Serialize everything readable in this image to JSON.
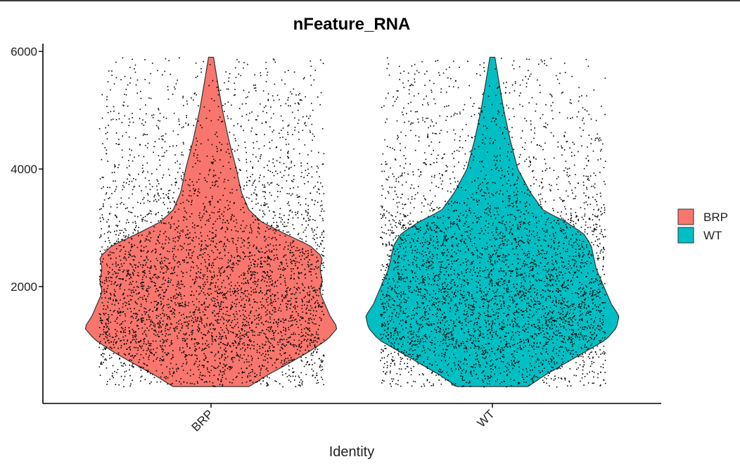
{
  "chart_data": {
    "type": "violin",
    "title": "nFeature_RNA",
    "xlabel": "Identity",
    "ylabel": "",
    "categories": [
      "BRP",
      "WT"
    ],
    "ylim": [
      0,
      6000
    ],
    "yticks": [
      2000,
      4000,
      6000
    ],
    "grid": false,
    "legend": {
      "position": "right",
      "entries": [
        "BRP",
        "WT"
      ]
    },
    "colors": {
      "BRP": "#F8766D",
      "WT": "#00BFC4"
    },
    "jitter_points": true,
    "series": [
      {
        "name": "BRP",
        "range": [
          300,
          5900
        ],
        "density": [
          [
            300,
            0.3
          ],
          [
            500,
            0.45
          ],
          [
            700,
            0.62
          ],
          [
            900,
            0.78
          ],
          [
            1100,
            0.92
          ],
          [
            1300,
            1.0
          ],
          [
            1500,
            0.94
          ],
          [
            1700,
            0.9
          ],
          [
            1900,
            0.86
          ],
          [
            2100,
            0.88
          ],
          [
            2300,
            0.86
          ],
          [
            2500,
            0.88
          ],
          [
            2700,
            0.78
          ],
          [
            2900,
            0.58
          ],
          [
            3100,
            0.4
          ],
          [
            3300,
            0.3
          ],
          [
            3600,
            0.24
          ],
          [
            4000,
            0.2
          ],
          [
            4500,
            0.14
          ],
          [
            5000,
            0.09
          ],
          [
            5500,
            0.05
          ],
          [
            5900,
            0.02
          ]
        ]
      },
      {
        "name": "WT",
        "range": [
          300,
          5900
        ],
        "density": [
          [
            300,
            0.28
          ],
          [
            500,
            0.42
          ],
          [
            700,
            0.58
          ],
          [
            900,
            0.74
          ],
          [
            1100,
            0.9
          ],
          [
            1300,
            0.98
          ],
          [
            1500,
            1.0
          ],
          [
            1700,
            0.94
          ],
          [
            1900,
            0.9
          ],
          [
            2100,
            0.86
          ],
          [
            2300,
            0.82
          ],
          [
            2500,
            0.8
          ],
          [
            2700,
            0.78
          ],
          [
            2900,
            0.72
          ],
          [
            3100,
            0.58
          ],
          [
            3300,
            0.4
          ],
          [
            3600,
            0.3
          ],
          [
            4000,
            0.2
          ],
          [
            4500,
            0.14
          ],
          [
            5000,
            0.09
          ],
          [
            5500,
            0.05
          ],
          [
            5900,
            0.02
          ]
        ]
      }
    ]
  }
}
